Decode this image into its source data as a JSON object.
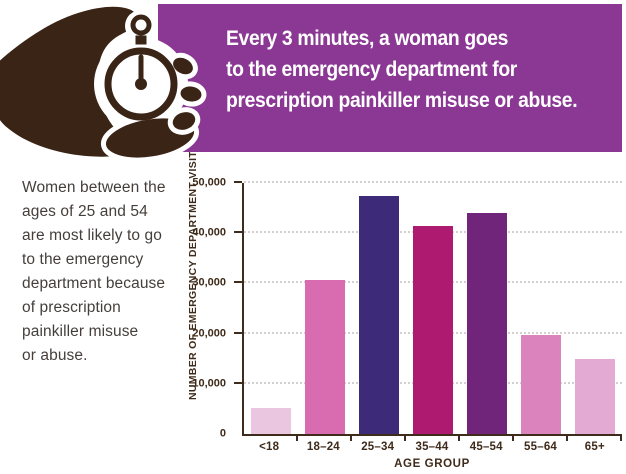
{
  "banner": {
    "bg_color": "#8b3894",
    "text_color": "#ffffff",
    "lines": [
      "Every 3 minutes, a woman goes",
      "to the emergency department for",
      "prescription painkiller misuse or abuse."
    ]
  },
  "hand_icon": {
    "name": "hand-holding-stopwatch",
    "color": "#3a2416"
  },
  "callout": {
    "text_color": "#453e3b",
    "lines": [
      "Women between the",
      "ages of 25 and 54",
      "are most likely to go",
      "to the emergency",
      "department because",
      "of prescription",
      "painkiller misuse",
      "or abuse."
    ]
  },
  "chart_data": {
    "type": "bar",
    "categories": [
      "<18",
      "18–24",
      "25–34",
      "35–44",
      "45–54",
      "55–64",
      "65+"
    ],
    "values": [
      5200,
      30700,
      47500,
      41500,
      44000,
      19800,
      14900
    ],
    "bar_colors": [
      "#eac6e0",
      "#d96cb1",
      "#3d2a78",
      "#ad1a70",
      "#70257b",
      "#da83bc",
      "#e3abd4"
    ],
    "title": "",
    "xlabel": "AGE GROUP",
    "ylabel": "NUMBER OF EMERGENCY DEPARTMENT VISITS",
    "ylim": [
      0,
      50000
    ],
    "y_ticks": [
      {
        "label": "0",
        "value": 0
      },
      {
        "label": "10,000",
        "value": 10000
      },
      {
        "label": "20,000",
        "value": 20000
      },
      {
        "label": "30,000",
        "value": 30000
      },
      {
        "label": "40,000",
        "value": 40000
      },
      {
        "label": "50,000",
        "value": 50000
      }
    ],
    "grid": "horizontal-dotted",
    "legend": "none",
    "axis_color": "#3f2b1b"
  }
}
